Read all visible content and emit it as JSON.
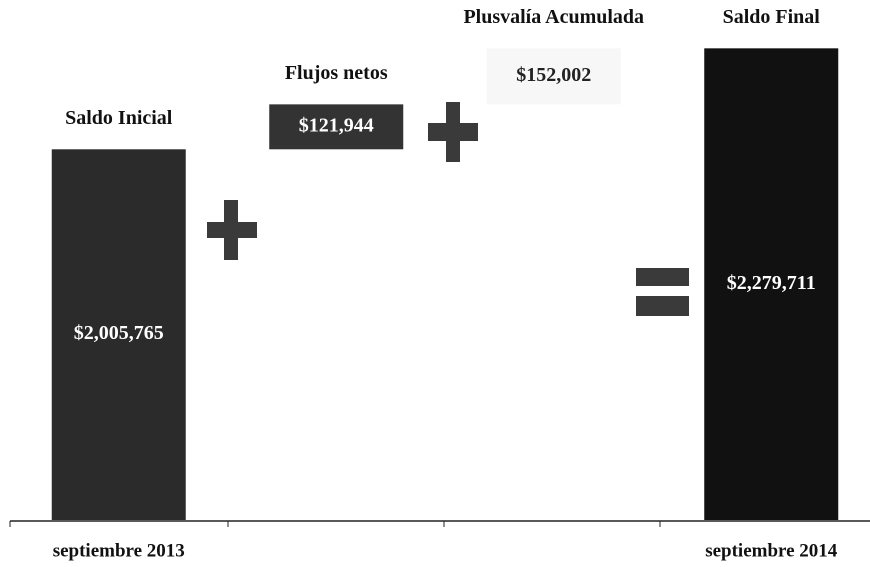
{
  "chart_data": {
    "type": "waterfall",
    "categories": [
      "Saldo Inicial",
      "Flujos netos",
      "Plusvalía Acumulada",
      "Saldo Final"
    ],
    "measure": [
      "total",
      "relative",
      "relative",
      "total"
    ],
    "values": [
      2005765,
      121944,
      152002,
      2279711
    ],
    "value_labels": [
      "$2,005,765",
      "$121,944",
      "$152,002",
      "$2,279,711"
    ],
    "colors": [
      "#2b2b2b",
      "#333333",
      "#f7f7f7",
      "#111111"
    ],
    "x_labels": [
      "septiembre 2013",
      "septiembre 2014"
    ],
    "ylim": [
      1000000,
      2400000
    ]
  }
}
